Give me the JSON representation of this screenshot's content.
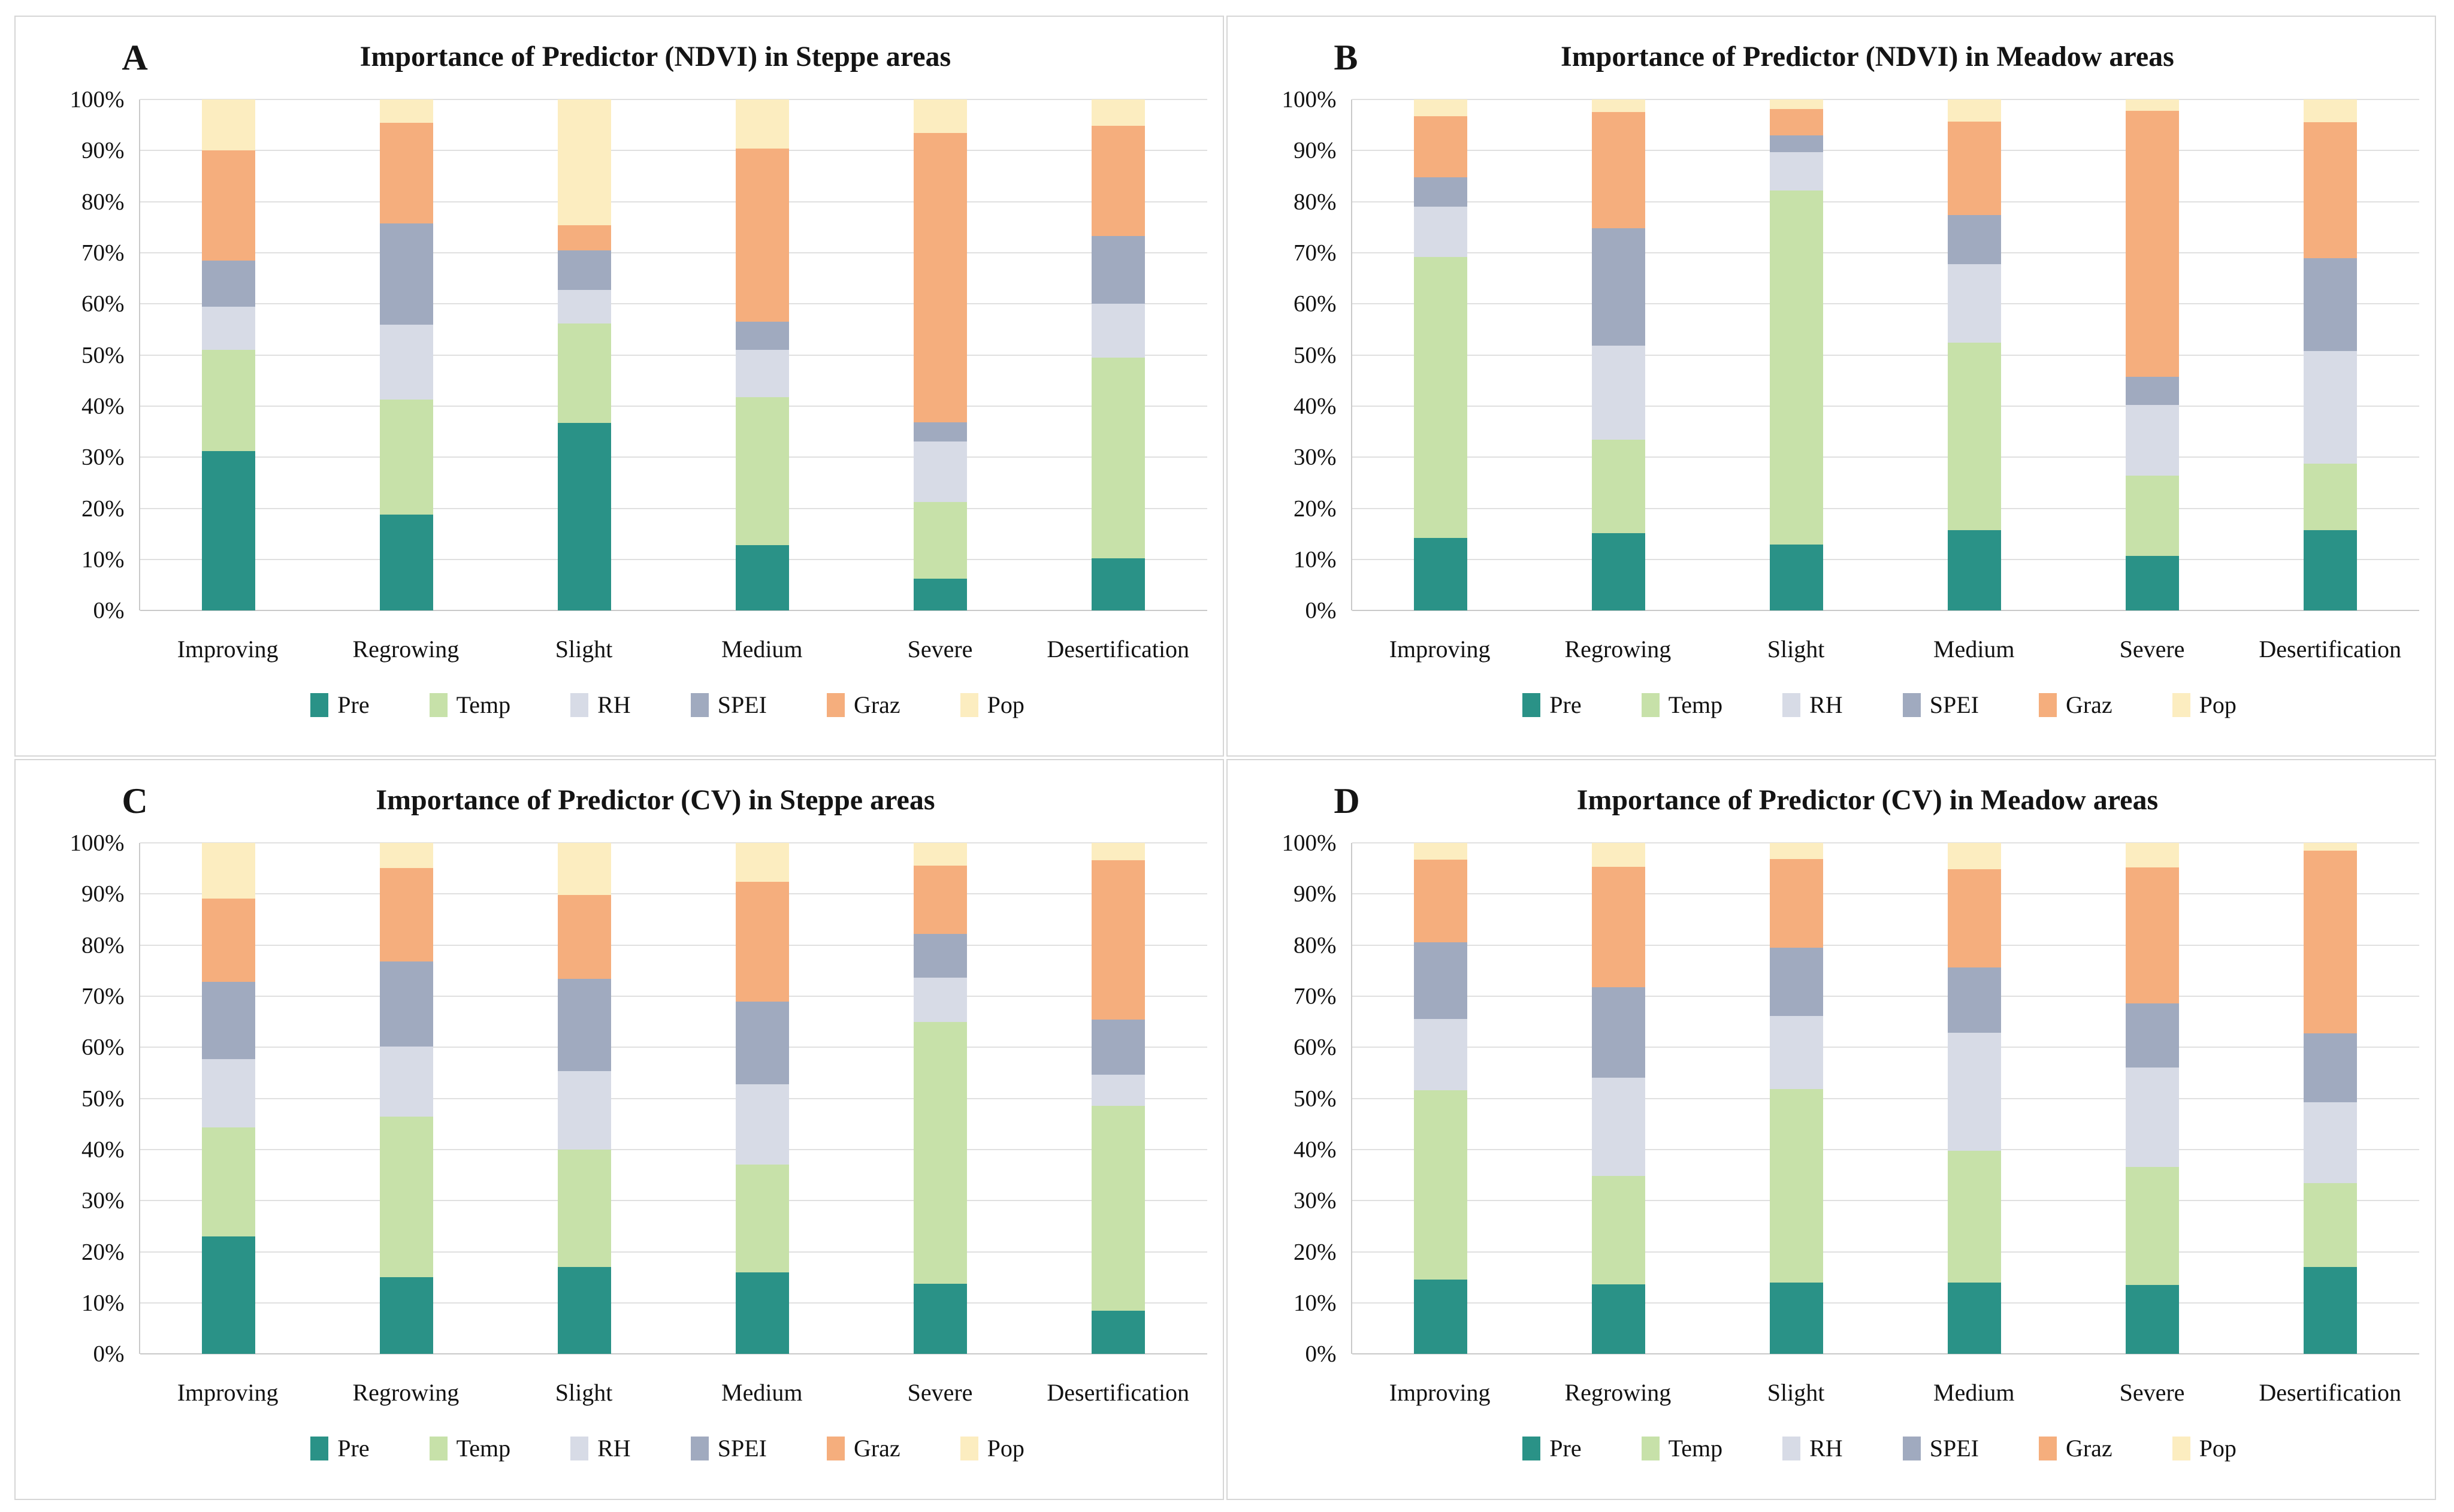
{
  "figure": {
    "y_ticks": [
      "0%",
      "10%",
      "20%",
      "30%",
      "40%",
      "50%",
      "60%",
      "70%",
      "80%",
      "90%",
      "100%"
    ],
    "series": [
      {
        "name": "Pre",
        "color": "#2A9287"
      },
      {
        "name": "Temp",
        "color": "#C7E1A9"
      },
      {
        "name": "RH",
        "color": "#D7DBE6"
      },
      {
        "name": "SPEI",
        "color": "#A0AABF"
      },
      {
        "name": "Graz",
        "color": "#F5AE7D"
      },
      {
        "name": "Pop",
        "color": "#FCEDC0"
      }
    ],
    "grid_color": "#E0E0E0",
    "axis_color": "#C9C9C9"
  },
  "chart_data": [
    {
      "type": "bar",
      "subtype": "stacked-100",
      "panel_letter": "A",
      "title": "Importance of Predictor (NDVI) in Steppe areas",
      "xlabel": "",
      "ylabel": "",
      "ylim": [
        0,
        100
      ],
      "ytick_step": 10,
      "grid": true,
      "legend_position": "bottom",
      "categories": [
        "Improving",
        "Regrowing",
        "Slight",
        "Medium",
        "Severe",
        "Desertification"
      ],
      "series": [
        {
          "name": "Pre",
          "values": [
            31.2,
            18.8,
            36.7,
            12.8,
            6.3,
            10.2
          ]
        },
        {
          "name": "Temp",
          "values": [
            19.8,
            22.5,
            19.5,
            29.0,
            14.9,
            39.3
          ]
        },
        {
          "name": "RH",
          "values": [
            8.5,
            14.7,
            6.6,
            9.2,
            11.9,
            10.5
          ]
        },
        {
          "name": "SPEI",
          "values": [
            9.0,
            19.7,
            7.7,
            5.5,
            3.7,
            13.3
          ]
        },
        {
          "name": "Graz",
          "values": [
            21.5,
            19.8,
            4.9,
            33.9,
            56.7,
            21.6
          ]
        },
        {
          "name": "Pop",
          "values": [
            10.0,
            4.5,
            24.6,
            9.6,
            6.5,
            5.1
          ]
        }
      ]
    },
    {
      "type": "bar",
      "subtype": "stacked-100",
      "panel_letter": "B",
      "title": "Importance of Predictor (NDVI) in Meadow areas",
      "xlabel": "",
      "ylabel": "",
      "ylim": [
        0,
        100
      ],
      "ytick_step": 10,
      "grid": true,
      "legend_position": "bottom",
      "categories": [
        "Improving",
        "Regrowing",
        "Slight",
        "Medium",
        "Severe",
        "Desertification"
      ],
      "series": [
        {
          "name": "Pre",
          "values": [
            14.2,
            15.2,
            12.9,
            15.7,
            10.7,
            15.7
          ]
        },
        {
          "name": "Temp",
          "values": [
            55.0,
            18.3,
            69.3,
            36.7,
            15.7,
            13.1
          ]
        },
        {
          "name": "RH",
          "values": [
            9.8,
            18.3,
            7.5,
            15.4,
            13.8,
            22.0
          ]
        },
        {
          "name": "SPEI",
          "values": [
            5.8,
            23.0,
            3.3,
            9.6,
            5.6,
            18.2
          ]
        },
        {
          "name": "Graz",
          "values": [
            11.9,
            22.7,
            5.1,
            18.3,
            52.0,
            26.6
          ]
        },
        {
          "name": "Pop",
          "values": [
            3.3,
            2.5,
            1.9,
            4.3,
            2.2,
            4.4
          ]
        }
      ]
    },
    {
      "type": "bar",
      "subtype": "stacked-100",
      "panel_letter": "C",
      "title": "Importance of Predictor (CV) in Steppe areas",
      "xlabel": "",
      "ylabel": "",
      "ylim": [
        0,
        100
      ],
      "ytick_step": 10,
      "grid": true,
      "legend_position": "bottom",
      "categories": [
        "Improving",
        "Regrowing",
        "Slight",
        "Medium",
        "Severe",
        "Desertification"
      ],
      "series": [
        {
          "name": "Pre",
          "values": [
            23.0,
            15.1,
            17.0,
            16.0,
            13.7,
            8.5
          ]
        },
        {
          "name": "Temp",
          "values": [
            21.4,
            31.3,
            23.0,
            21.1,
            51.3,
            40.1
          ]
        },
        {
          "name": "RH",
          "values": [
            13.3,
            13.8,
            15.4,
            15.7,
            8.6,
            6.0
          ]
        },
        {
          "name": "SPEI",
          "values": [
            15.1,
            16.6,
            18.0,
            16.2,
            8.6,
            10.8
          ]
        },
        {
          "name": "Graz",
          "values": [
            16.3,
            18.3,
            16.4,
            23.4,
            13.4,
            31.2
          ]
        },
        {
          "name": "Pop",
          "values": [
            10.9,
            4.9,
            10.2,
            7.6,
            4.4,
            3.4
          ]
        }
      ]
    },
    {
      "type": "bar",
      "subtype": "stacked-100",
      "panel_letter": "D",
      "title": "Importance of Predictor (CV) in Meadow areas",
      "xlabel": "",
      "ylabel": "",
      "ylim": [
        0,
        100
      ],
      "ytick_step": 10,
      "grid": true,
      "legend_position": "bottom",
      "categories": [
        "Improving",
        "Regrowing",
        "Slight",
        "Medium",
        "Severe",
        "Desertification"
      ],
      "series": [
        {
          "name": "Pre",
          "values": [
            14.6,
            13.6,
            14.0,
            14.0,
            13.5,
            17.0
          ]
        },
        {
          "name": "Temp",
          "values": [
            37.0,
            21.2,
            37.8,
            25.8,
            23.1,
            16.4
          ]
        },
        {
          "name": "RH",
          "values": [
            13.9,
            19.3,
            14.3,
            23.1,
            19.5,
            15.9
          ]
        },
        {
          "name": "SPEI",
          "values": [
            15.1,
            17.7,
            13.4,
            12.7,
            12.5,
            13.5
          ]
        },
        {
          "name": "Graz",
          "values": [
            16.1,
            23.5,
            17.4,
            19.3,
            26.6,
            35.7
          ]
        },
        {
          "name": "Pop",
          "values": [
            3.3,
            4.7,
            3.1,
            5.1,
            4.8,
            1.5
          ]
        }
      ]
    }
  ]
}
